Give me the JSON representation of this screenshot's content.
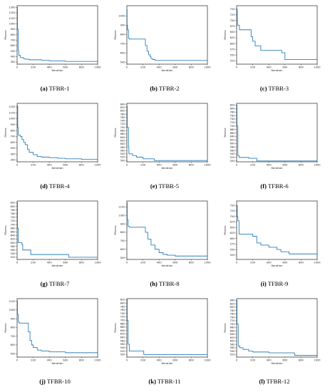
{
  "chart_data": [
    {
      "type": "line",
      "panel_letter": "(a)",
      "panel_title": "TFBR-1",
      "xlabel": "Iteration",
      "ylabel": "Fitness",
      "xlim": [
        0,
        1000
      ],
      "ylim": [
        260,
        1330
      ],
      "xticks": [
        0,
        200,
        400,
        600,
        800,
        1000
      ],
      "yticks": [
        300,
        400,
        500,
        600,
        700,
        800,
        900,
        1000,
        1100,
        1200,
        1300
      ],
      "series": [
        {
          "x": [
            0,
            5,
            15,
            20,
            40,
            50,
            80,
            100,
            150,
            200,
            300,
            400,
            500,
            600,
            700,
            800,
            1000
          ],
          "y": [
            1300,
            900,
            520,
            420,
            380,
            380,
            360,
            350,
            340,
            340,
            330,
            320,
            320,
            310,
            310,
            310,
            310
          ]
        }
      ]
    },
    {
      "type": "line",
      "panel_letter": "(b)",
      "panel_title": "TFBR-2",
      "xlabel": "Iteration",
      "ylabel": "Fitness",
      "xlim": [
        0,
        1000
      ],
      "ylim": [
        480,
        1110
      ],
      "xticks": [
        0,
        200,
        400,
        600,
        800,
        1000
      ],
      "yticks": [
        500,
        600,
        700,
        800,
        900,
        1000
      ],
      "series": [
        {
          "x": [
            0,
            3,
            8,
            20,
            30,
            100,
            200,
            230,
            250,
            270,
            290,
            300,
            320,
            350,
            400,
            500,
            600,
            1000
          ],
          "y": [
            1070,
            900,
            850,
            760,
            750,
            750,
            750,
            680,
            620,
            580,
            560,
            540,
            530,
            520,
            520,
            520,
            520,
            520
          ]
        }
      ]
    },
    {
      "type": "line",
      "panel_letter": "(c)",
      "panel_title": "TFBR-3",
      "xlabel": "Iteration",
      "ylabel": "Fitness",
      "xlim": [
        0,
        1000
      ],
      "ylim": [
        510,
        765
      ],
      "xticks": [
        0,
        200,
        400,
        600,
        800,
        1000
      ],
      "yticks": [
        525,
        550,
        575,
        600,
        625,
        650,
        675,
        700,
        725,
        750
      ],
      "series": [
        {
          "x": [
            0,
            8,
            10,
            30,
            35,
            150,
            180,
            200,
            230,
            260,
            300,
            380,
            560,
            600,
            1000
          ],
          "y": [
            750,
            700,
            680,
            680,
            660,
            660,
            630,
            610,
            590,
            590,
            570,
            570,
            560,
            530,
            530
          ]
        }
      ]
    },
    {
      "type": "line",
      "panel_letter": "(d)",
      "panel_title": "TFBR-4",
      "xlabel": "Iteration",
      "ylabel": "Fitness",
      "xlim": [
        0,
        1000
      ],
      "ylim": [
        270,
        1260
      ],
      "xticks": [
        0,
        200,
        400,
        600,
        800,
        1000
      ],
      "yticks": [
        300,
        400,
        500,
        600,
        700,
        800,
        900,
        1000,
        1100,
        1200
      ],
      "series": [
        {
          "x": [
            0,
            8,
            15,
            40,
            60,
            80,
            100,
            130,
            150,
            200,
            250,
            300,
            400,
            500,
            600,
            700,
            800,
            1000
          ],
          "y": [
            1220,
            850,
            720,
            700,
            650,
            600,
            560,
            480,
            430,
            390,
            360,
            350,
            340,
            330,
            320,
            320,
            310,
            310
          ]
        }
      ]
    },
    {
      "type": "line",
      "panel_letter": "(e)",
      "panel_title": "TFBR-5",
      "xlabel": "Iteration",
      "ylabel": "Fitness",
      "xlim": [
        0,
        1000
      ],
      "ylim": [
        492,
        845
      ],
      "xticks": [
        0,
        200,
        400,
        600,
        800,
        1000
      ],
      "yticks": [
        500,
        520,
        540,
        560,
        580,
        600,
        620,
        640,
        660,
        680,
        700,
        720,
        740,
        760,
        780,
        800,
        820,
        840
      ],
      "series": [
        {
          "x": [
            0,
            5,
            20,
            25,
            60,
            70,
            110,
            120,
            180,
            200,
            320,
            340,
            1000
          ],
          "y": [
            830,
            700,
            580,
            540,
            540,
            530,
            530,
            520,
            520,
            510,
            510,
            500,
            500
          ]
        }
      ]
    },
    {
      "type": "line",
      "panel_letter": "(f)",
      "panel_title": "TFBR-6",
      "xlabel": "Iteration",
      "ylabel": "Fitness",
      "xlim": [
        0,
        1000
      ],
      "ylim": [
        495,
        830
      ],
      "xticks": [
        0,
        200,
        400,
        600,
        800,
        1000
      ],
      "yticks": [
        500,
        520,
        540,
        560,
        580,
        600,
        620,
        640,
        660,
        680,
        700,
        720,
        740,
        760,
        780,
        800,
        820
      ],
      "series": [
        {
          "x": [
            0,
            5,
            15,
            30,
            140,
            150,
            240,
            250,
            1000
          ],
          "y": [
            820,
            700,
            530,
            520,
            520,
            515,
            515,
            500,
            500
          ]
        }
      ]
    },
    {
      "type": "line",
      "panel_letter": "(g)",
      "panel_title": "TFBR-7",
      "xlabel": "Iteration",
      "ylabel": "Fitness",
      "xlim": [
        0,
        1000
      ],
      "ylim": [
        508,
        830
      ],
      "xticks": [
        0,
        200,
        400,
        600,
        800,
        1000
      ],
      "yticks": [
        520,
        540,
        560,
        580,
        600,
        620,
        640,
        660,
        680,
        700,
        720,
        740,
        760,
        780,
        800,
        820
      ],
      "series": [
        {
          "x": [
            0,
            5,
            15,
            50,
            60,
            70,
            160,
            170,
            620,
            640,
            1000
          ],
          "y": [
            820,
            680,
            600,
            600,
            590,
            560,
            560,
            535,
            535,
            520,
            520
          ]
        }
      ]
    },
    {
      "type": "line",
      "panel_letter": "(h)",
      "panel_title": "TFBR-8",
      "xlabel": "Iteration",
      "ylabel": "Fitness",
      "xlim": [
        0,
        1000
      ],
      "ylim": [
        480,
        1170
      ],
      "xticks": [
        0,
        200,
        400,
        600,
        800,
        1000
      ],
      "yticks": [
        500,
        600,
        700,
        800,
        900,
        1000,
        1100
      ],
      "series": [
        {
          "x": [
            0,
            5,
            15,
            30,
            200,
            230,
            260,
            300,
            350,
            400,
            450,
            500,
            600,
            800,
            1000
          ],
          "y": [
            1150,
            950,
            870,
            860,
            860,
            800,
            720,
            650,
            600,
            560,
            540,
            530,
            520,
            520,
            520
          ]
        }
      ]
    },
    {
      "type": "line",
      "panel_letter": "(i)",
      "panel_title": "TFBR-9",
      "xlabel": "Iteration",
      "ylabel": "Fitness",
      "xlim": [
        0,
        1000
      ],
      "ylim": [
        505,
        770
      ],
      "xticks": [
        0,
        200,
        400,
        600,
        800,
        1000
      ],
      "yticks": [
        525,
        550,
        575,
        600,
        625,
        650,
        675,
        700,
        725,
        750
      ],
      "series": [
        {
          "x": [
            0,
            8,
            15,
            30,
            180,
            200,
            250,
            300,
            400,
            500,
            550,
            650,
            1000
          ],
          "y": [
            750,
            700,
            680,
            620,
            620,
            610,
            580,
            570,
            560,
            550,
            540,
            530,
            530
          ]
        }
      ]
    },
    {
      "type": "line",
      "panel_letter": "(j)",
      "panel_title": "TFBR-10",
      "xlabel": "Iteration",
      "ylabel": "Fitness",
      "xlim": [
        0,
        1000
      ],
      "ylim": [
        460,
        1130
      ],
      "xticks": [
        0,
        200,
        400,
        600,
        800,
        1000
      ],
      "yticks": [
        500,
        600,
        700,
        800,
        900,
        1000,
        1100
      ],
      "series": [
        {
          "x": [
            0,
            5,
            15,
            30,
            120,
            140,
            160,
            180,
            200,
            250,
            300,
            400,
            600,
            1000
          ],
          "y": [
            1100,
            950,
            860,
            850,
            850,
            750,
            650,
            600,
            570,
            540,
            530,
            520,
            510,
            510
          ]
        }
      ]
    },
    {
      "type": "line",
      "panel_letter": "(k)",
      "panel_title": "TFBR-11",
      "xlabel": "Iteration",
      "ylabel": "Fitness",
      "xlim": [
        0,
        1000
      ],
      "ylim": [
        485,
        826
      ],
      "xticks": [
        0,
        200,
        400,
        600,
        800,
        1000
      ],
      "yticks": [
        500,
        520,
        540,
        560,
        580,
        600,
        620,
        640,
        660,
        680,
        700,
        720,
        740,
        760,
        780,
        800,
        820
      ],
      "series": [
        {
          "x": [
            0,
            5,
            15,
            30,
            200,
            210,
            1000
          ],
          "y": [
            820,
            700,
            560,
            520,
            520,
            500,
            500
          ]
        }
      ]
    },
    {
      "type": "line",
      "panel_letter": "(l)",
      "panel_title": "TFBR-12",
      "xlabel": "Iteration",
      "ylabel": "Fitness",
      "xlim": [
        0,
        1000
      ],
      "ylim": [
        505,
        850
      ],
      "xticks": [
        0,
        200,
        400,
        600,
        800,
        1000
      ],
      "yticks": [
        520,
        540,
        560,
        580,
        600,
        620,
        640,
        660,
        680,
        700,
        720,
        740,
        760,
        780,
        800,
        820,
        840
      ],
      "series": [
        {
          "x": [
            0,
            5,
            20,
            40,
            80,
            150,
            200,
            400,
            700,
            720,
            1000
          ],
          "y": [
            840,
            700,
            570,
            560,
            550,
            540,
            535,
            530,
            530,
            515,
            515
          ]
        }
      ]
    }
  ]
}
